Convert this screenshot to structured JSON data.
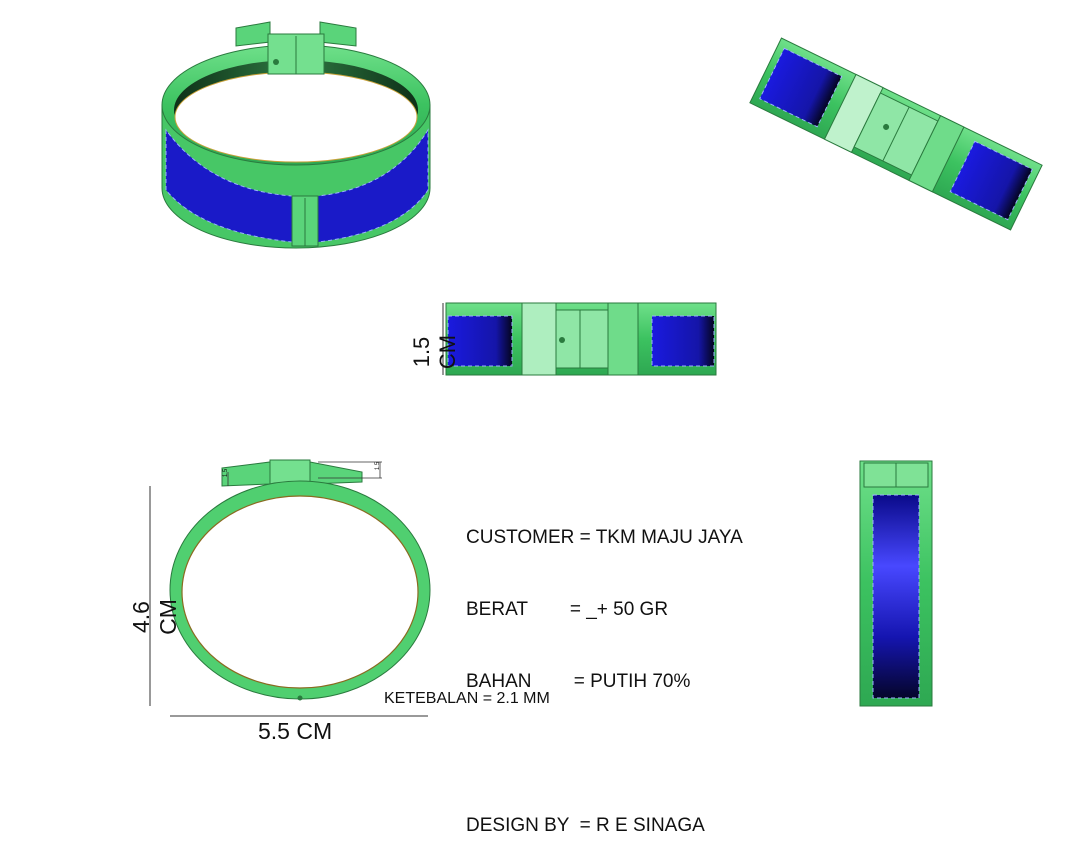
{
  "info": {
    "customer_line": "CUSTOMER = TKM MAJU JAYA",
    "berat_line": "BERAT        = _+ 50 GR",
    "bahan_line": "BAHAN        = PUTIH 70%",
    "design_line": "DESIGN BY  = R E SINAGA"
  },
  "dimensions": {
    "height_front": "1.5 CM",
    "height_ring": "4.6 CM",
    "width_ring": "5.5 CM",
    "thickness": "KETEBALAN = 2.1 MM",
    "tiny_a": "1.5",
    "tiny_b": "1.5"
  },
  "colors": {
    "band": "#4fcf6f",
    "band_dark": "#1f7a35",
    "inlay": "#1a1acc",
    "inlay_dark": "#050533",
    "outline": "#555555"
  }
}
